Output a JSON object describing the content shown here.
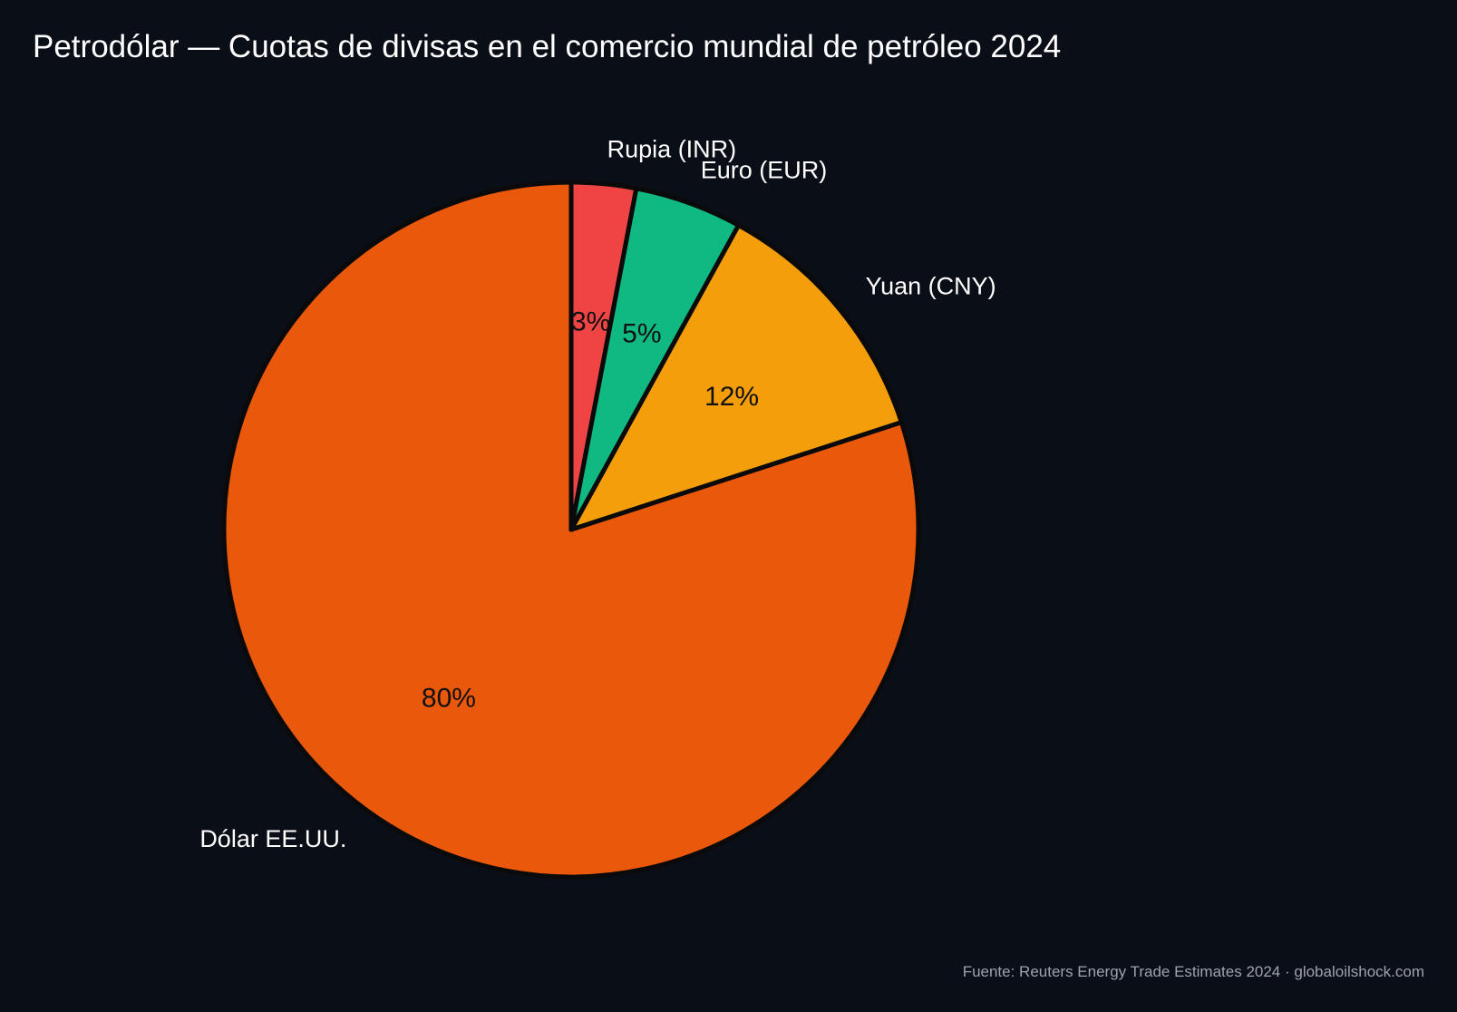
{
  "chart_data": {
    "type": "pie",
    "title": "Petrodólar — Cuotas de divisas en el comercio mundial de petróleo 2024",
    "start_angle": 90,
    "direction": "counterclockwise",
    "slices": [
      {
        "label": "Dólar EE.UU.",
        "value": 80,
        "pct_label": "80%",
        "color": "#ea580c"
      },
      {
        "label": "Yuan (CNY)",
        "value": 12,
        "pct_label": "12%",
        "color": "#f59e0b"
      },
      {
        "label": "Euro (EUR)",
        "value": 5,
        "pct_label": "5%",
        "color": "#10b981"
      },
      {
        "label": "Rupia (INR)",
        "value": 3,
        "pct_label": "3%",
        "color": "#ef4444"
      }
    ],
    "edge_color": "#0a0a0a",
    "background": "#0a0e17",
    "source": "Fuente: Reuters Energy Trade Estimates 2024 · globaloilshock.com"
  }
}
